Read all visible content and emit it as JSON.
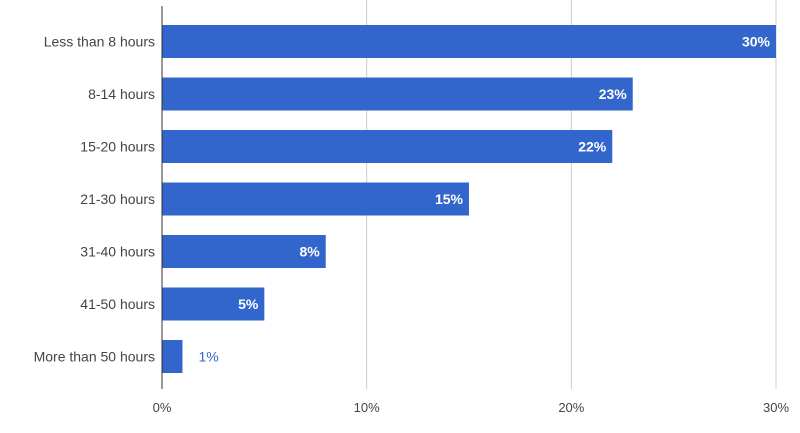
{
  "chart_data": {
    "type": "bar",
    "orientation": "horizontal",
    "categories": [
      "Less than 8 hours",
      "8-14 hours",
      "15-20 hours",
      "21-30 hours",
      "31-40 hours",
      "41-50 hours",
      "More than 50 hours"
    ],
    "values": [
      30,
      23,
      22,
      15,
      8,
      5,
      1
    ],
    "value_labels": [
      "30%",
      "23%",
      "22%",
      "15%",
      "8%",
      "5%",
      "1%"
    ],
    "xlim": [
      0,
      30
    ],
    "x_ticks": [
      0,
      10,
      20,
      30
    ],
    "x_tick_labels": [
      "0%",
      "10%",
      "20%",
      "30%"
    ],
    "grid": true,
    "bar_color": "#3366cc",
    "grid_color": "#cccccc",
    "axis_color": "#333333"
  }
}
